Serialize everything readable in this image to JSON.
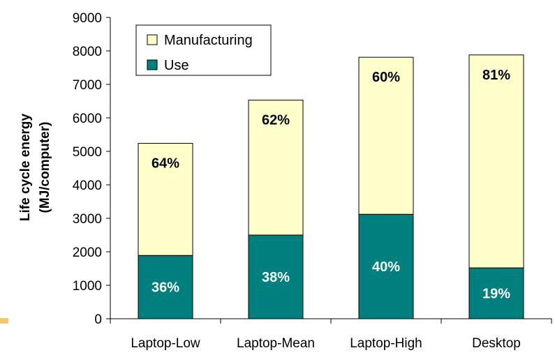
{
  "chart_data": {
    "type": "bar",
    "stacked": true,
    "title": "",
    "xlabel": "",
    "ylabel": [
      "Life cycle energy",
      "(MJ/computer)"
    ],
    "ylim": [
      0,
      9000
    ],
    "yticks": [
      0,
      1000,
      2000,
      3000,
      4000,
      5000,
      6000,
      7000,
      8000,
      9000
    ],
    "categories": [
      "Laptop-Low",
      "Laptop-Mean",
      "Laptop-High",
      "Desktop"
    ],
    "series": [
      {
        "name": "Use",
        "values": [
          1890,
          2500,
          3120,
          1520
        ],
        "labels": [
          "36%",
          "38%",
          "40%",
          "19%"
        ],
        "color": "#007F7F",
        "label_color": "#ffffff"
      },
      {
        "name": "Manufacturing",
        "values": [
          3350,
          4030,
          4690,
          6360
        ],
        "labels": [
          "64%",
          "62%",
          "60%",
          "81%"
        ],
        "color": "#FFFFCC",
        "label_color": "#000000"
      }
    ],
    "legend": {
      "placement": "top-left",
      "order": [
        "Manufacturing",
        "Use"
      ]
    },
    "grid": false
  }
}
